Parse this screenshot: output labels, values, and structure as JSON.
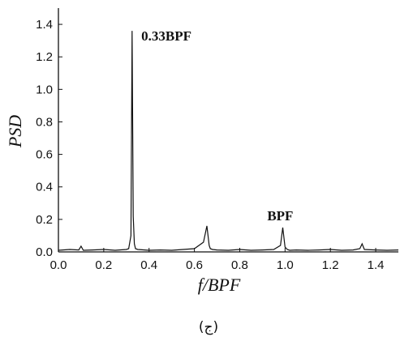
{
  "chart_data": {
    "type": "line",
    "xlabel": "f/BPF",
    "ylabel": "PSD",
    "xlim": [
      0.0,
      1.5
    ],
    "ylim": [
      0.0,
      1.5
    ],
    "x_ticks": [
      "0.0",
      "0.2",
      "0.4",
      "0.6",
      "0.8",
      "1.0",
      "1.2",
      "1.4"
    ],
    "y_ticks": [
      "0.0",
      "0.2",
      "0.4",
      "0.6",
      "0.8",
      "1.0",
      "1.2",
      "1.4"
    ],
    "grid": false,
    "series": [
      {
        "x": [
          0.0,
          0.05,
          0.09,
          0.1,
          0.11,
          0.15,
          0.2,
          0.25,
          0.3,
          0.31,
          0.32,
          0.325,
          0.33,
          0.335,
          0.34,
          0.35,
          0.4,
          0.45,
          0.5,
          0.55,
          0.6,
          0.64,
          0.655,
          0.665,
          0.67,
          0.68,
          0.7,
          0.75,
          0.8,
          0.85,
          0.9,
          0.95,
          0.98,
          0.99,
          1.0,
          1.01,
          1.02,
          1.05,
          1.1,
          1.15,
          1.2,
          1.25,
          1.3,
          1.33,
          1.34,
          1.35,
          1.4,
          1.45,
          1.5
        ],
        "y": [
          0.01,
          0.015,
          0.012,
          0.035,
          0.01,
          0.012,
          0.015,
          0.01,
          0.015,
          0.02,
          0.1,
          1.36,
          0.22,
          0.05,
          0.02,
          0.015,
          0.01,
          0.012,
          0.01,
          0.015,
          0.02,
          0.06,
          0.16,
          0.04,
          0.02,
          0.015,
          0.012,
          0.01,
          0.015,
          0.01,
          0.012,
          0.015,
          0.04,
          0.15,
          0.03,
          0.015,
          0.01,
          0.012,
          0.01,
          0.012,
          0.015,
          0.01,
          0.012,
          0.02,
          0.05,
          0.015,
          0.012,
          0.01,
          0.012
        ]
      }
    ],
    "annotations": [
      {
        "text": "0.33BPF",
        "x": 0.33,
        "y": 1.36
      },
      {
        "text": "BPF",
        "x": 1.0,
        "y": 0.2
      }
    ]
  },
  "caption": "(ج)"
}
